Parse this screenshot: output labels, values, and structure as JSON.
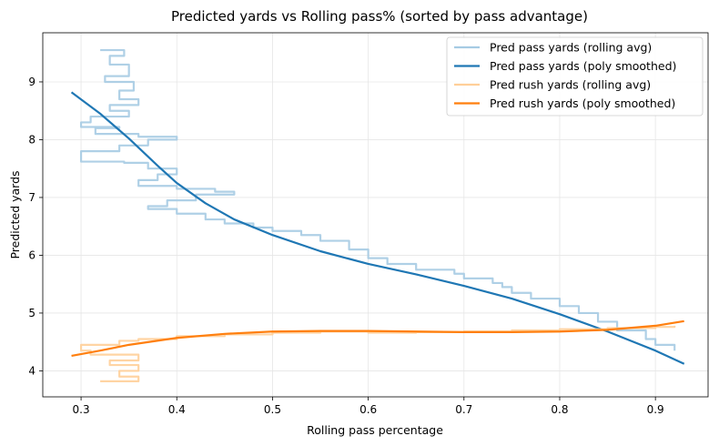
{
  "chart_data": {
    "type": "line",
    "title": "Predicted yards vs Rolling pass% (sorted by pass advantage)",
    "xlabel": "Rolling pass percentage",
    "ylabel": "Predicted yards",
    "xlim": [
      0.26,
      0.955
    ],
    "ylim": [
      3.55,
      9.85
    ],
    "xticks": [
      0.3,
      0.4,
      0.5,
      0.6,
      0.7,
      0.8,
      0.9
    ],
    "yticks": [
      4,
      5,
      6,
      7,
      8,
      9
    ],
    "xtick_labels": [
      "0.3",
      "0.4",
      "0.5",
      "0.6",
      "0.7",
      "0.8",
      "0.9"
    ],
    "ytick_labels": [
      "4",
      "5",
      "6",
      "7",
      "8",
      "9"
    ],
    "grid": true,
    "legend_position": "top-right",
    "series": [
      {
        "name": "Pred pass yards (rolling avg)",
        "color": "#a6cbe3",
        "style": "thin",
        "points": [
          [
            0.32,
            9.55
          ],
          [
            0.345,
            9.45
          ],
          [
            0.33,
            9.3
          ],
          [
            0.35,
            9.1
          ],
          [
            0.325,
            9.0
          ],
          [
            0.355,
            8.85
          ],
          [
            0.34,
            8.7
          ],
          [
            0.36,
            8.6
          ],
          [
            0.33,
            8.5
          ],
          [
            0.35,
            8.4
          ],
          [
            0.31,
            8.3
          ],
          [
            0.3,
            8.22
          ],
          [
            0.34,
            8.2
          ],
          [
            0.315,
            8.1
          ],
          [
            0.36,
            8.05
          ],
          [
            0.4,
            8.0
          ],
          [
            0.37,
            7.9
          ],
          [
            0.34,
            7.8
          ],
          [
            0.3,
            7.62
          ],
          [
            0.345,
            7.6
          ],
          [
            0.37,
            7.5
          ],
          [
            0.4,
            7.4
          ],
          [
            0.38,
            7.3
          ],
          [
            0.36,
            7.2
          ],
          [
            0.4,
            7.15
          ],
          [
            0.44,
            7.1
          ],
          [
            0.46,
            7.05
          ],
          [
            0.42,
            6.95
          ],
          [
            0.39,
            6.85
          ],
          [
            0.37,
            6.8
          ],
          [
            0.4,
            6.72
          ],
          [
            0.43,
            6.62
          ],
          [
            0.45,
            6.55
          ],
          [
            0.48,
            6.48
          ],
          [
            0.5,
            6.42
          ],
          [
            0.53,
            6.35
          ],
          [
            0.55,
            6.25
          ],
          [
            0.58,
            6.1
          ],
          [
            0.6,
            5.95
          ],
          [
            0.62,
            5.85
          ],
          [
            0.65,
            5.75
          ],
          [
            0.69,
            5.68
          ],
          [
            0.7,
            5.6
          ],
          [
            0.73,
            5.52
          ],
          [
            0.74,
            5.45
          ],
          [
            0.75,
            5.35
          ],
          [
            0.77,
            5.25
          ],
          [
            0.8,
            5.12
          ],
          [
            0.82,
            5.0
          ],
          [
            0.84,
            4.85
          ],
          [
            0.86,
            4.7
          ],
          [
            0.89,
            4.55
          ],
          [
            0.9,
            4.45
          ],
          [
            0.92,
            4.35
          ]
        ]
      },
      {
        "name": "Pred pass yards (poly smoothed)",
        "color": "#1f77b4",
        "style": "thick",
        "points": [
          [
            0.29,
            8.82
          ],
          [
            0.32,
            8.45
          ],
          [
            0.35,
            8.02
          ],
          [
            0.38,
            7.55
          ],
          [
            0.4,
            7.25
          ],
          [
            0.43,
            6.9
          ],
          [
            0.46,
            6.62
          ],
          [
            0.5,
            6.35
          ],
          [
            0.55,
            6.07
          ],
          [
            0.6,
            5.85
          ],
          [
            0.65,
            5.67
          ],
          [
            0.7,
            5.47
          ],
          [
            0.75,
            5.25
          ],
          [
            0.8,
            4.98
          ],
          [
            0.85,
            4.68
          ],
          [
            0.9,
            4.35
          ],
          [
            0.93,
            4.12
          ]
        ]
      },
      {
        "name": "Pred rush yards (rolling avg)",
        "color": "#ffcf99",
        "style": "thin",
        "points": [
          [
            0.32,
            3.82
          ],
          [
            0.36,
            3.9
          ],
          [
            0.34,
            4.0
          ],
          [
            0.36,
            4.1
          ],
          [
            0.33,
            4.18
          ],
          [
            0.36,
            4.28
          ],
          [
            0.31,
            4.35
          ],
          [
            0.3,
            4.45
          ],
          [
            0.34,
            4.52
          ],
          [
            0.36,
            4.55
          ],
          [
            0.4,
            4.6
          ],
          [
            0.45,
            4.63
          ],
          [
            0.5,
            4.66
          ],
          [
            0.55,
            4.68
          ],
          [
            0.6,
            4.66
          ],
          [
            0.65,
            4.67
          ],
          [
            0.7,
            4.68
          ],
          [
            0.75,
            4.7
          ],
          [
            0.8,
            4.72
          ],
          [
            0.85,
            4.74
          ],
          [
            0.9,
            4.76
          ],
          [
            0.92,
            4.78
          ]
        ]
      },
      {
        "name": "Pred rush yards (poly smoothed)",
        "color": "#ff7f0e",
        "style": "thick",
        "points": [
          [
            0.29,
            4.26
          ],
          [
            0.32,
            4.35
          ],
          [
            0.35,
            4.45
          ],
          [
            0.4,
            4.57
          ],
          [
            0.45,
            4.64
          ],
          [
            0.5,
            4.68
          ],
          [
            0.55,
            4.69
          ],
          [
            0.6,
            4.69
          ],
          [
            0.65,
            4.68
          ],
          [
            0.7,
            4.67
          ],
          [
            0.75,
            4.67
          ],
          [
            0.8,
            4.68
          ],
          [
            0.85,
            4.71
          ],
          [
            0.9,
            4.78
          ],
          [
            0.93,
            4.86
          ]
        ]
      }
    ]
  }
}
